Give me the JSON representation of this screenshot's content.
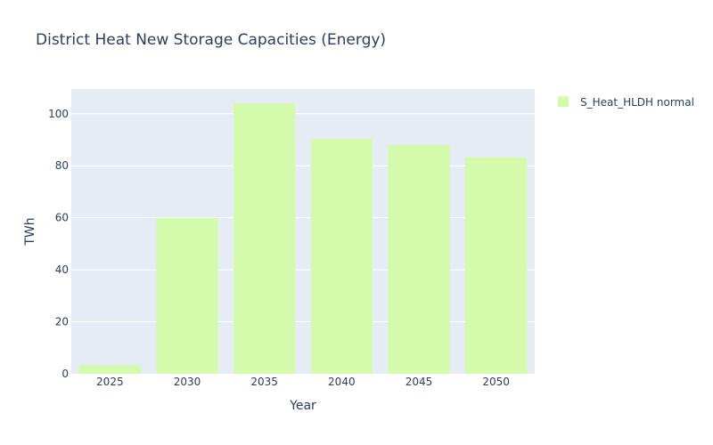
{
  "chart_data": {
    "type": "bar",
    "title": "District Heat New Storage Capacities (Energy)",
    "xlabel": "Year",
    "ylabel": "TWh",
    "categories": [
      "2025",
      "2030",
      "2035",
      "2040",
      "2045",
      "2050"
    ],
    "series": [
      {
        "name": "S_Heat_HLDH normal",
        "values": [
          3.3,
          60,
          104,
          90.3,
          88,
          83.2
        ],
        "color": "#d4fbac"
      }
    ],
    "ylim": [
      0,
      109.5
    ],
    "yticks": [
      0,
      20,
      40,
      60,
      80,
      100
    ],
    "grid": true,
    "legend_position": "top-right",
    "plot_background": "#e5ecf6"
  }
}
